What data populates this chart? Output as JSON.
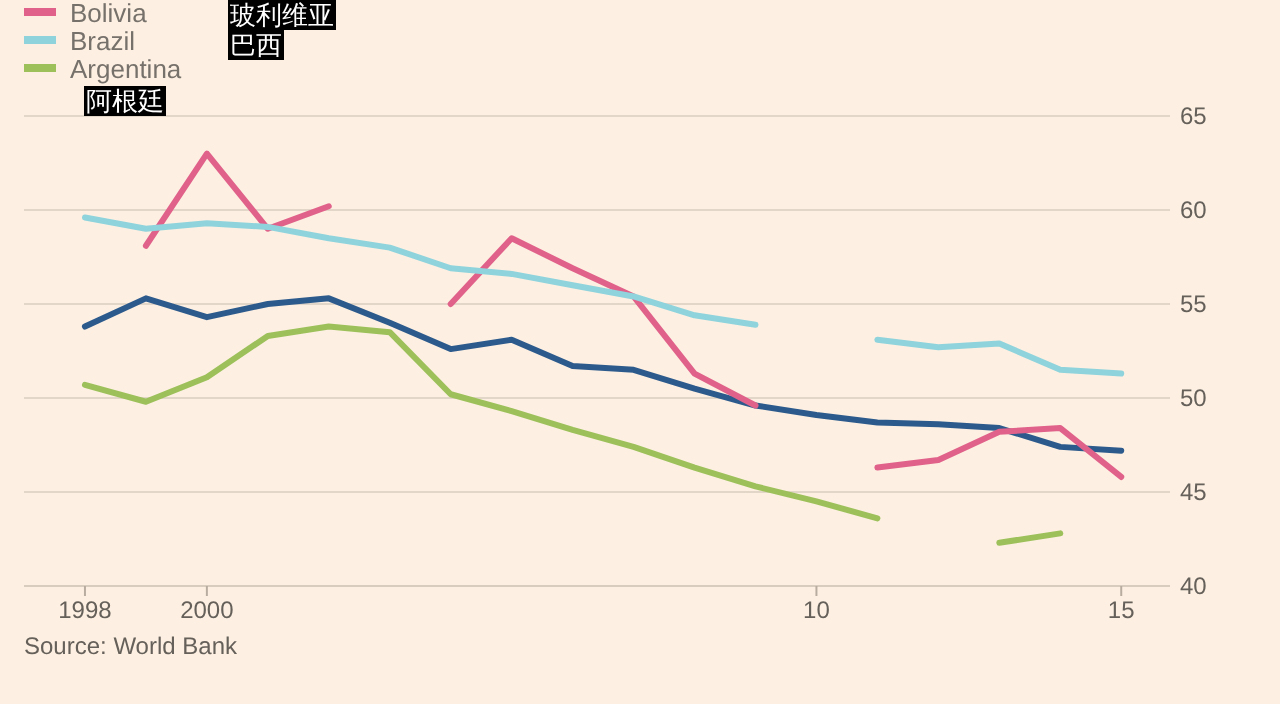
{
  "chart_data": {
    "type": "line",
    "x": [
      1998,
      1999,
      2000,
      2001,
      2002,
      2003,
      2004,
      2005,
      2006,
      2007,
      2008,
      2009,
      2010,
      2011,
      2012,
      2013,
      2014,
      2015
    ],
    "series": [
      {
        "color": "#2d5a8c",
        "values": [
          53.8,
          55.3,
          54.3,
          55.0,
          55.3,
          54.0,
          52.6,
          53.1,
          51.7,
          51.5,
          50.5,
          49.6,
          49.1,
          48.7,
          48.6,
          48.4,
          47.4,
          47.2
        ]
      },
      {
        "name": "Bolivia",
        "color": "#e0628a",
        "values": [
          null,
          58.1,
          63.0,
          59.0,
          60.2,
          null,
          55.0,
          58.5,
          56.9,
          55.4,
          51.3,
          49.6,
          null,
          46.3,
          46.7,
          48.2,
          48.4,
          45.8
        ]
      },
      {
        "name": "Brazil",
        "color": "#8fd3dc",
        "values": [
          59.6,
          59.0,
          59.3,
          59.1,
          58.5,
          58.0,
          56.9,
          56.6,
          56.0,
          55.4,
          54.4,
          53.9,
          null,
          53.1,
          52.7,
          52.9,
          51.5,
          51.3
        ]
      },
      {
        "name": "Argentina",
        "color": "#9dc05b",
        "values": [
          50.7,
          49.8,
          51.1,
          53.3,
          53.8,
          53.5,
          50.2,
          49.3,
          48.3,
          47.4,
          46.3,
          45.3,
          44.5,
          43.6,
          null,
          42.3,
          42.8,
          null
        ]
      }
    ],
    "xlim": [
      1997,
      2015.8
    ],
    "xticks": [
      1998,
      2000,
      {
        "value": 2010,
        "label": "10"
      },
      {
        "value": 2015,
        "label": "15"
      }
    ],
    "ylim": [
      40,
      65
    ],
    "yticks": [
      40,
      45,
      50,
      55,
      60,
      65
    ],
    "grid": "y",
    "legend": "top left",
    "line_style": "solid",
    "marker": "none",
    "annotations": [
      "玻利维亚",
      "巴西",
      "阿根廷",
      "Source: World Bank"
    ]
  }
}
